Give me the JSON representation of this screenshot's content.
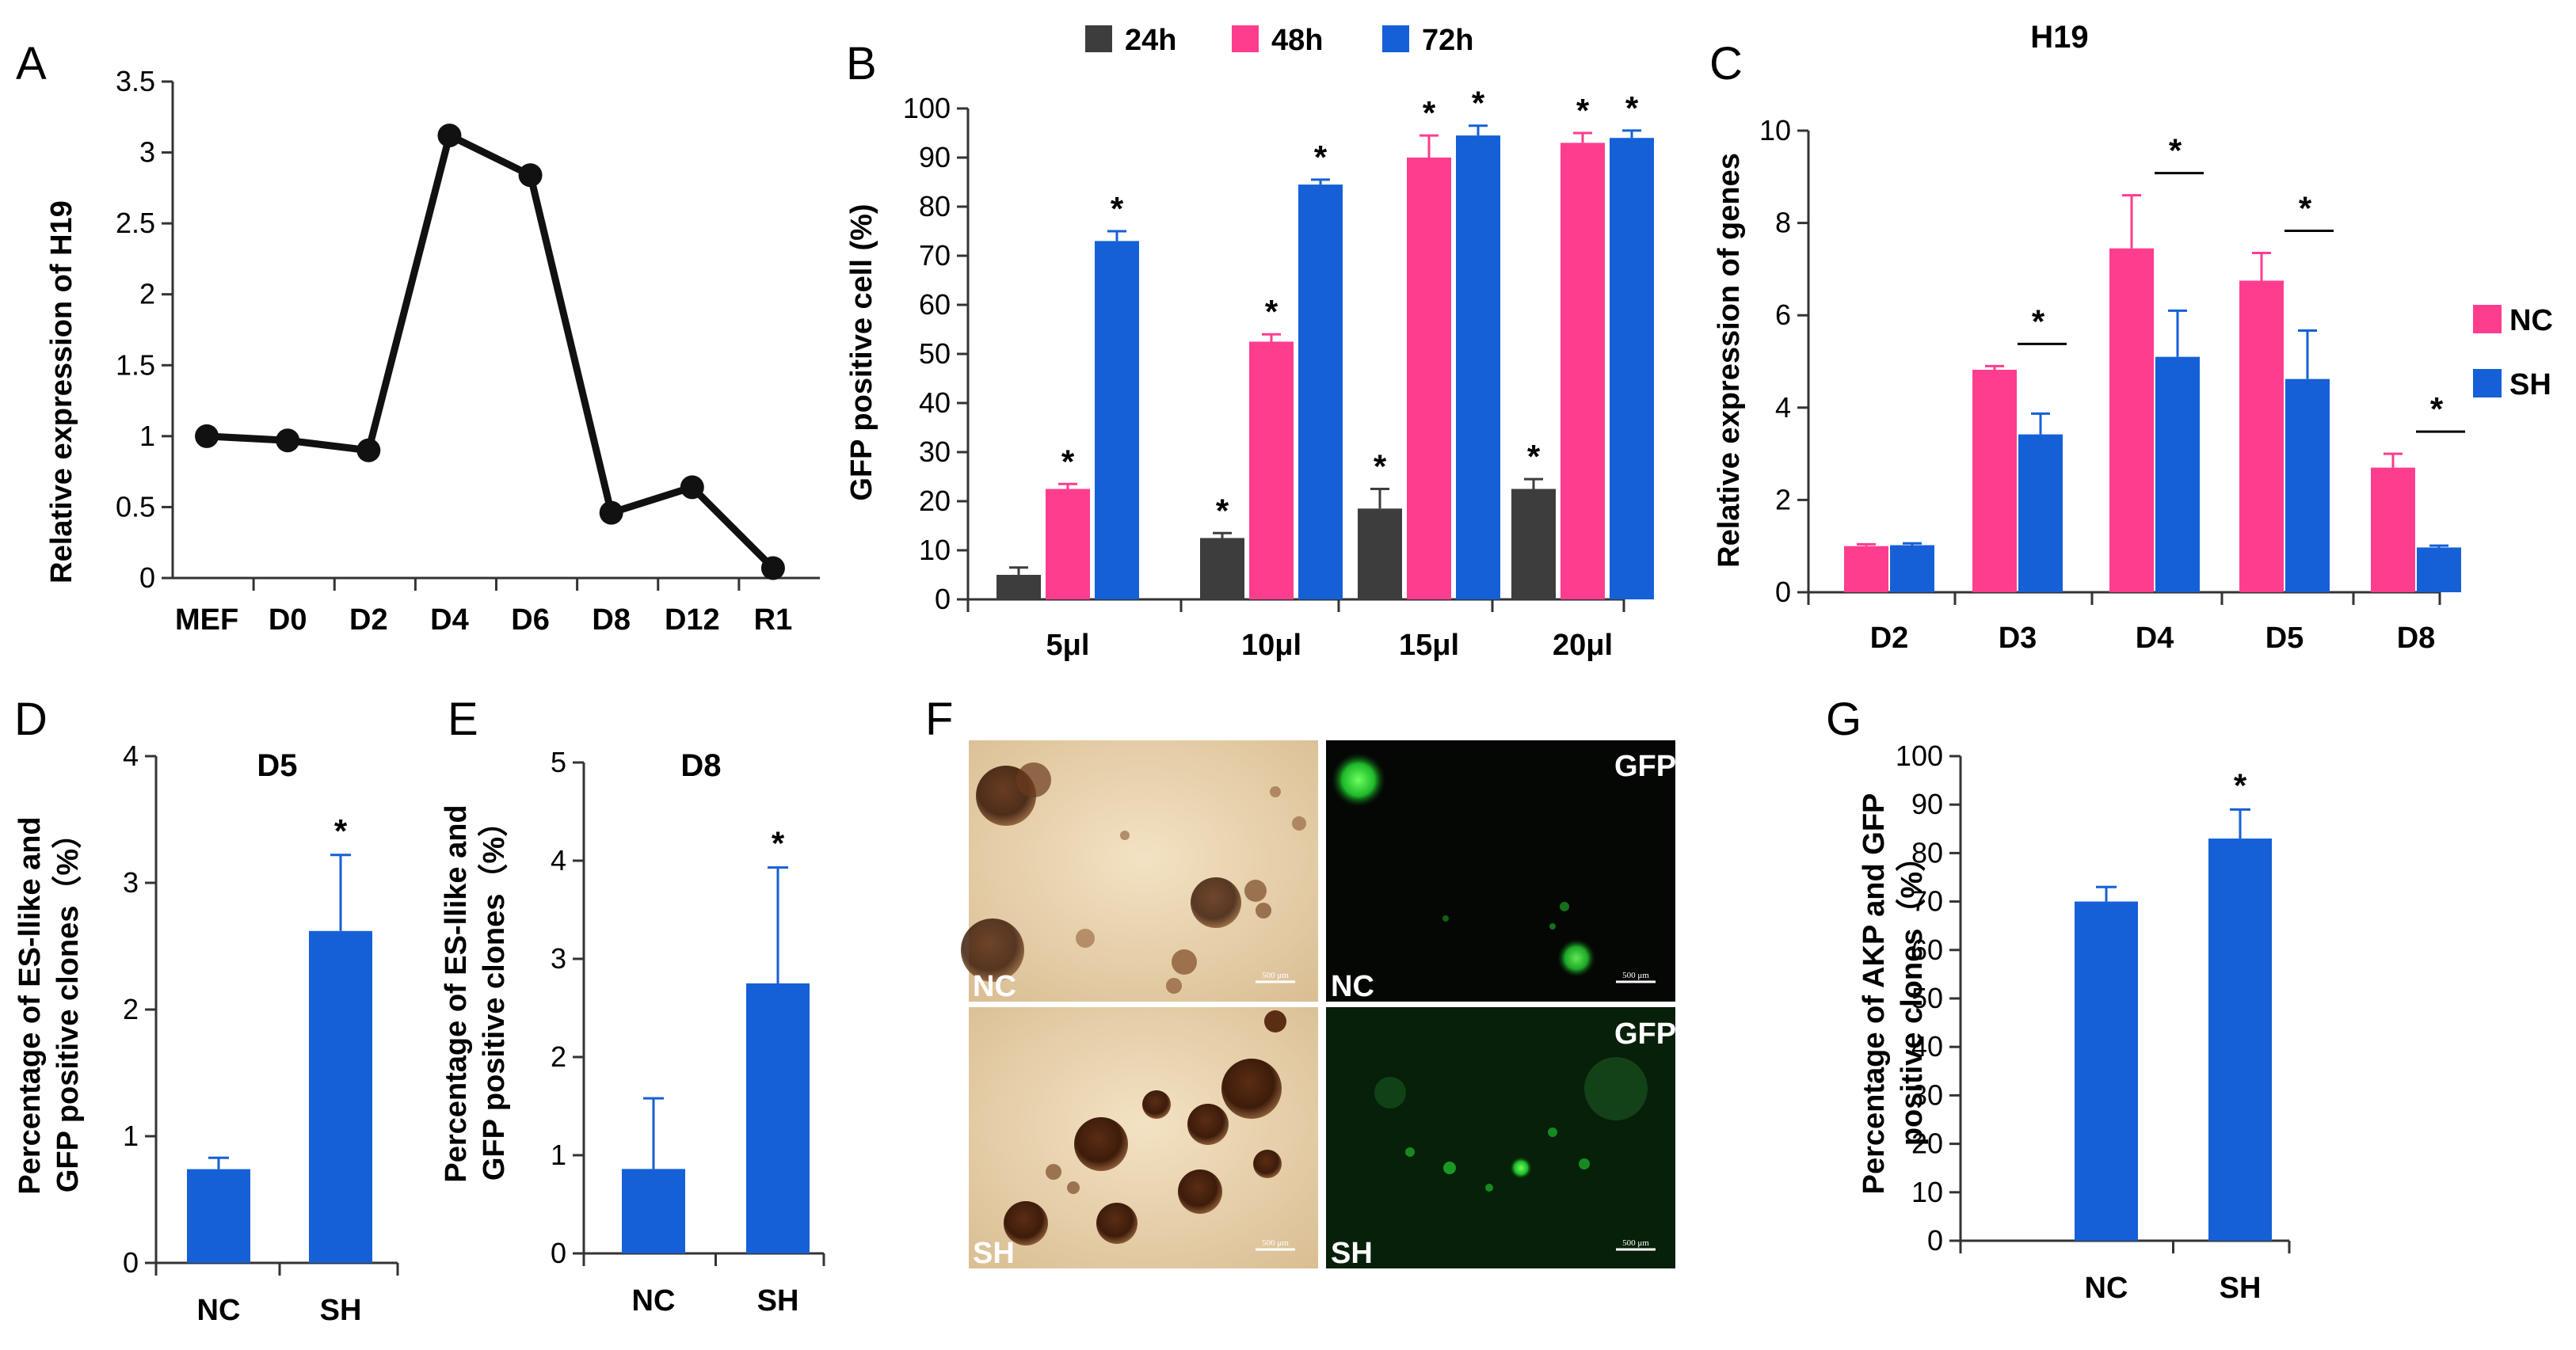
{
  "colors": {
    "black": "#111111",
    "pink": "#ff3d8f",
    "blue": "#1560d6",
    "dark": "#3d3d3d",
    "green": "#1eb82a"
  },
  "panels": {
    "A": {
      "letter": "A",
      "chart_data": {
        "type": "line",
        "title": "",
        "xlabel": "",
        "ylabel": "Relative expression of H19",
        "categories": [
          "MEF",
          "D0",
          "D2",
          "D4",
          "D6",
          "D8",
          "D12",
          "R1"
        ],
        "values": [
          1.0,
          0.97,
          0.9,
          3.12,
          2.84,
          0.46,
          0.64,
          0.07
        ],
        "ylim": [
          0,
          3.5
        ],
        "yticks": [
          0,
          0.5,
          1,
          1.5,
          2,
          2.5,
          3,
          3.5
        ],
        "ytick_labels": [
          "0",
          "0.5",
          "1",
          "1.5",
          "2",
          "2.5",
          "3",
          "3.5"
        ]
      }
    },
    "B": {
      "letter": "B",
      "chart_data": {
        "type": "bar",
        "title": "",
        "xlabel": "",
        "ylabel": "GFP positive cell (%)",
        "categories": [
          "5μl",
          "10μl",
          "15μl",
          "20μl"
        ],
        "series": [
          {
            "name": "24h",
            "values": [
              5,
              12.5,
              18.5,
              22.5
            ],
            "errors": [
              1.5,
              1,
              4,
              2
            ],
            "stars": [
              false,
              true,
              true,
              true
            ]
          },
          {
            "name": "48h",
            "values": [
              22.5,
              52.5,
              90,
              93
            ],
            "errors": [
              1,
              1.5,
              4.5,
              2
            ],
            "stars": [
              true,
              true,
              true,
              true
            ]
          },
          {
            "name": "72h",
            "values": [
              73,
              84.5,
              94.5,
              94
            ],
            "errors": [
              2,
              1,
              2,
              1.5
            ],
            "stars": [
              true,
              true,
              true,
              true
            ]
          }
        ],
        "ylim": [
          0,
          100
        ],
        "yticks": [
          0,
          10,
          20,
          30,
          40,
          50,
          60,
          70,
          80,
          90,
          100
        ],
        "ytick_labels": [
          "0",
          "10",
          "20",
          "30",
          "40",
          "50",
          "60",
          "70",
          "80",
          "90",
          "100"
        ],
        "legend_placement": "top"
      }
    },
    "C": {
      "letter": "C",
      "chart_data": {
        "type": "bar",
        "title": "H19",
        "xlabel": "",
        "ylabel": "Relative expression of genes",
        "categories": [
          "D2",
          "D3",
          "D4",
          "D5",
          "D8"
        ],
        "series": [
          {
            "name": "NC",
            "values": [
              1.0,
              4.82,
              7.45,
              6.75,
              2.7
            ],
            "errors": [
              0.04,
              0.08,
              1.15,
              0.6,
              0.3
            ]
          },
          {
            "name": "SH",
            "values": [
              1.02,
              3.42,
              5.1,
              4.62,
              0.97
            ],
            "errors": [
              0.04,
              0.45,
              1.0,
              1.05,
              0.04
            ]
          }
        ],
        "significance": [
          false,
          true,
          true,
          true,
          true
        ],
        "star": "*",
        "ylim": [
          0,
          10
        ],
        "yticks": [
          0,
          2,
          4,
          6,
          8,
          10
        ],
        "ytick_labels": [
          "0",
          "2",
          "4",
          "6",
          "8",
          "10"
        ],
        "legend_placement": "right"
      }
    },
    "D": {
      "letter": "D",
      "chart_data": {
        "type": "bar",
        "title": "D5",
        "xlabel": "",
        "ylabel_lines": [
          "Percentage of ES-llike and",
          "GFP positive clones（%）"
        ],
        "categories": [
          "NC",
          "SH"
        ],
        "values": [
          0.74,
          2.62
        ],
        "errors": [
          0.09,
          0.6
        ],
        "stars": [
          false,
          true
        ],
        "ylim": [
          0,
          4
        ],
        "yticks": [
          0,
          1,
          2,
          3,
          4
        ],
        "ytick_labels": [
          "0",
          "1",
          "2",
          "3",
          "4"
        ]
      }
    },
    "E": {
      "letter": "E",
      "chart_data": {
        "type": "bar",
        "title": "D8",
        "xlabel": "",
        "ylabel_lines": [
          "Percentage of ES-llike and",
          "GFP positive clones（%）"
        ],
        "categories": [
          "NC",
          "SH"
        ],
        "values": [
          0.86,
          2.75
        ],
        "errors": [
          0.72,
          1.18
        ],
        "stars": [
          false,
          true
        ],
        "ylim": [
          0,
          5
        ],
        "yticks": [
          0,
          1,
          2,
          3,
          4,
          5
        ],
        "ytick_labels": [
          "0",
          "1",
          "2",
          "3",
          "4",
          "5"
        ]
      }
    },
    "F": {
      "letter": "F",
      "images": [
        {
          "name": "bright-field-nc",
          "label": "NC",
          "tag": "",
          "scale": "500 μm"
        },
        {
          "name": "gfp-nc",
          "label": "NC",
          "tag": "GFP",
          "scale": "500 μm"
        },
        {
          "name": "bright-field-sh",
          "label": "SH",
          "tag": "",
          "scale": "500 μm"
        },
        {
          "name": "gfp-sh",
          "label": "SH",
          "tag": "GFP",
          "scale": "500 μm"
        }
      ]
    },
    "G": {
      "letter": "G",
      "chart_data": {
        "type": "bar",
        "title": "",
        "xlabel": "",
        "ylabel_lines": [
          "Percentage of AKP and GFP",
          "positive clones（%）"
        ],
        "categories": [
          "NC",
          "SH"
        ],
        "values": [
          70,
          83
        ],
        "errors": [
          3,
          6
        ],
        "stars": [
          false,
          true
        ],
        "ylim": [
          0,
          100
        ],
        "yticks": [
          0,
          10,
          20,
          30,
          40,
          50,
          60,
          70,
          80,
          90,
          100
        ],
        "ytick_labels": [
          "0",
          "10",
          "20",
          "30",
          "40",
          "50",
          "60",
          "70",
          "80",
          "90",
          "100"
        ]
      }
    }
  }
}
